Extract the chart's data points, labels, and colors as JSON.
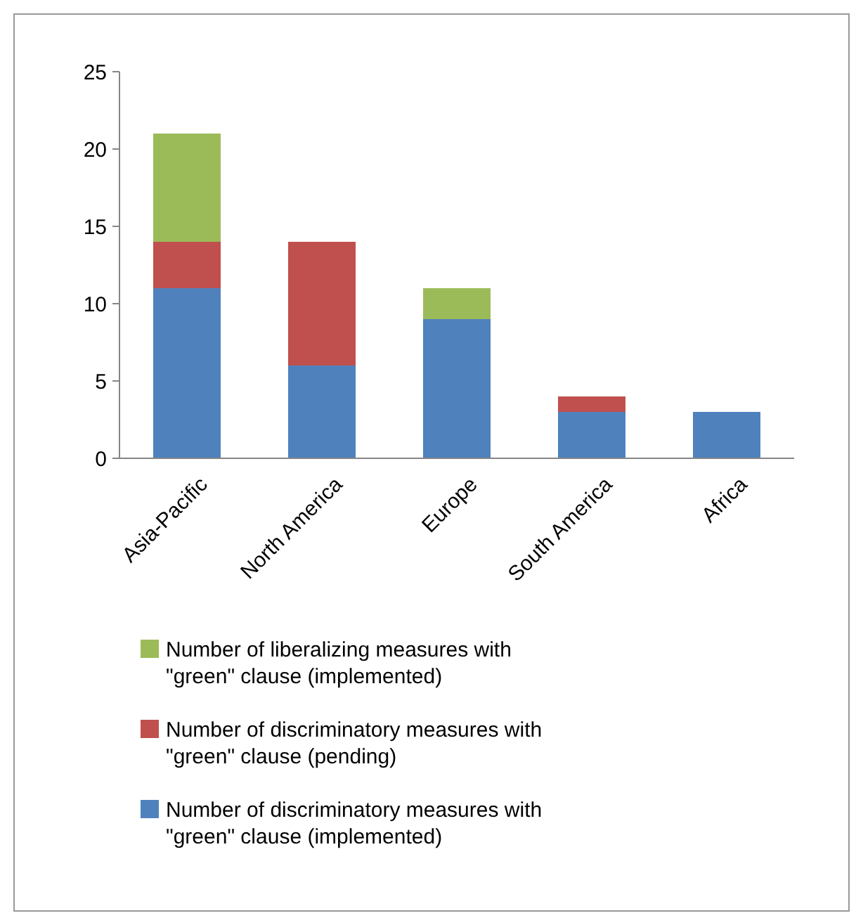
{
  "chart_data": {
    "type": "bar",
    "stacked": true,
    "categories": [
      "Asia-Pacific",
      "North America",
      "Europe",
      "South America",
      "Africa"
    ],
    "series": [
      {
        "name": "Number of discriminatory measures with \"green\" clause (implemented)",
        "color": "#4f81bd",
        "values": [
          11,
          6,
          9,
          3,
          3
        ]
      },
      {
        "name": "Number of discriminatory measures with \"green\" clause (pending)",
        "color": "#c0504d",
        "values": [
          3,
          8,
          0,
          1,
          0
        ]
      },
      {
        "name": "Number of liberalizing measures with \"green\" clause (implemented)",
        "color": "#9bbb59",
        "values": [
          7,
          0,
          2,
          0,
          0
        ]
      }
    ],
    "ylim": [
      0,
      25
    ],
    "yticks": [
      0,
      5,
      10,
      15,
      20,
      25
    ],
    "grid": false,
    "legend": "bottom"
  }
}
